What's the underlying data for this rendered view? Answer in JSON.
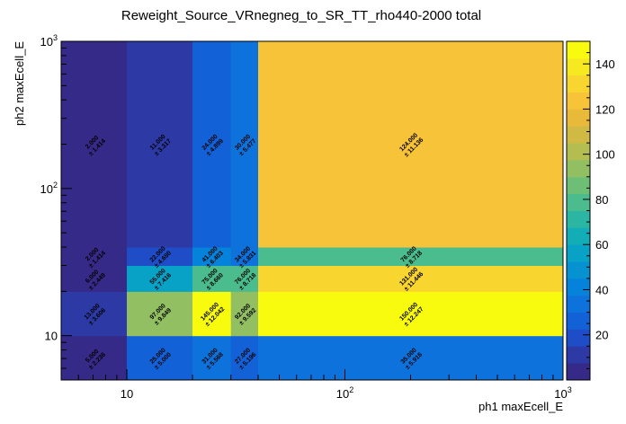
{
  "chart_data": {
    "type": "heatmap",
    "title": "Reweight_Source_VRnegneg_to_SR_TT_rho440-2000 total",
    "xlabel": "ph1 maxEcell_E",
    "ylabel": "ph2 maxEcell_E",
    "x_scale": "log",
    "y_scale": "log",
    "xlim": [
      5,
      1000
    ],
    "ylim": [
      5,
      1000
    ],
    "x_edges": [
      5,
      10,
      20,
      30,
      40,
      1000
    ],
    "y_edges": [
      5,
      10,
      20,
      30,
      40,
      1000
    ],
    "x_ticks": [
      {
        "value": 10,
        "base": "10",
        "exp": ""
      },
      {
        "value": 100,
        "base": "10",
        "exp": "2"
      },
      {
        "value": 1000,
        "base": "10",
        "exp": "3"
      }
    ],
    "y_ticks": [
      {
        "value": 10,
        "base": "10",
        "exp": ""
      },
      {
        "value": 100,
        "base": "10",
        "exp": "2"
      },
      {
        "value": 1000,
        "base": "10",
        "exp": "3"
      }
    ],
    "zlim": [
      0,
      150
    ],
    "z_ticks": [
      "20",
      "40",
      "60",
      "80",
      "100",
      "120",
      "140"
    ],
    "z_tick_values": [
      20,
      40,
      60,
      80,
      100,
      120,
      140
    ],
    "palette": [
      "#352a87",
      "#2d3aa6",
      "#1f4cc7",
      "#1361d7",
      "#0e72dd",
      "#0582d9",
      "#0692d1",
      "#07a2c6",
      "#12adb6",
      "#2ab6a3",
      "#4bbc8d",
      "#6ebf76",
      "#92bf62",
      "#b3bd50",
      "#d1ba43",
      "#e9b93a",
      "#f7c338",
      "#f9d52f",
      "#f6e921",
      "#f9fb0e"
    ],
    "cells": [
      {
        "x": 0,
        "y": 0,
        "value": 5.0,
        "label": "5.000",
        "err": "± 2.236"
      },
      {
        "x": 1,
        "y": 0,
        "value": 25.0,
        "label": "25.000",
        "err": "± 5.000"
      },
      {
        "x": 2,
        "y": 0,
        "value": 31.0,
        "label": "31.000",
        "err": "± 5.568"
      },
      {
        "x": 3,
        "y": 0,
        "value": 27.0,
        "label": "27.000",
        "err": "± 5.196"
      },
      {
        "x": 4,
        "y": 0,
        "value": 35.0,
        "label": "35.000",
        "err": "± 5.916"
      },
      {
        "x": 0,
        "y": 1,
        "value": 13.0,
        "label": "13.000",
        "err": "± 3.606"
      },
      {
        "x": 1,
        "y": 1,
        "value": 97.0,
        "label": "97.000",
        "err": "± 9.849"
      },
      {
        "x": 2,
        "y": 1,
        "value": 145.0,
        "label": "145.000",
        "err": "± 12.042"
      },
      {
        "x": 3,
        "y": 1,
        "value": 92.0,
        "label": "92.000",
        "err": "± 9.592"
      },
      {
        "x": 4,
        "y": 1,
        "value": 150.0,
        "label": "150.000",
        "err": "± 12.247"
      },
      {
        "x": 0,
        "y": 2,
        "value": 6.0,
        "label": "6.000",
        "err": "± 2.449"
      },
      {
        "x": 1,
        "y": 2,
        "value": 55.0,
        "label": "55.000",
        "err": "± 7.416"
      },
      {
        "x": 2,
        "y": 2,
        "value": 75.0,
        "label": "75.000",
        "err": "± 8.660"
      },
      {
        "x": 3,
        "y": 2,
        "value": 76.0,
        "label": "76.000",
        "err": "± 8.718"
      },
      {
        "x": 4,
        "y": 2,
        "value": 131.0,
        "label": "131.000",
        "err": "± 11.446"
      },
      {
        "x": 0,
        "y": 3,
        "value": 2.0,
        "label": "2.000",
        "err": "± 1.414"
      },
      {
        "x": 1,
        "y": 3,
        "value": 22.0,
        "label": "22.000",
        "err": "± 4.690"
      },
      {
        "x": 2,
        "y": 3,
        "value": 41.0,
        "label": "41.000",
        "err": "± 6.403"
      },
      {
        "x": 3,
        "y": 3,
        "value": 34.0,
        "label": "34.000",
        "err": "± 5.831"
      },
      {
        "x": 4,
        "y": 3,
        "value": 76.0,
        "label": "76.000",
        "err": "± 8.718"
      },
      {
        "x": 0,
        "y": 4,
        "value": 2.0,
        "label": "2.000",
        "err": "± 1.414"
      },
      {
        "x": 1,
        "y": 4,
        "value": 11.0,
        "label": "11.000",
        "err": "± 3.317"
      },
      {
        "x": 2,
        "y": 4,
        "value": 24.0,
        "label": "24.000",
        "err": "± 4.899"
      },
      {
        "x": 3,
        "y": 4,
        "value": 30.0,
        "label": "30.000",
        "err": "± 5.477"
      },
      {
        "x": 4,
        "y": 4,
        "value": 124.0,
        "label": "124.000",
        "err": "± 11.136"
      }
    ]
  }
}
